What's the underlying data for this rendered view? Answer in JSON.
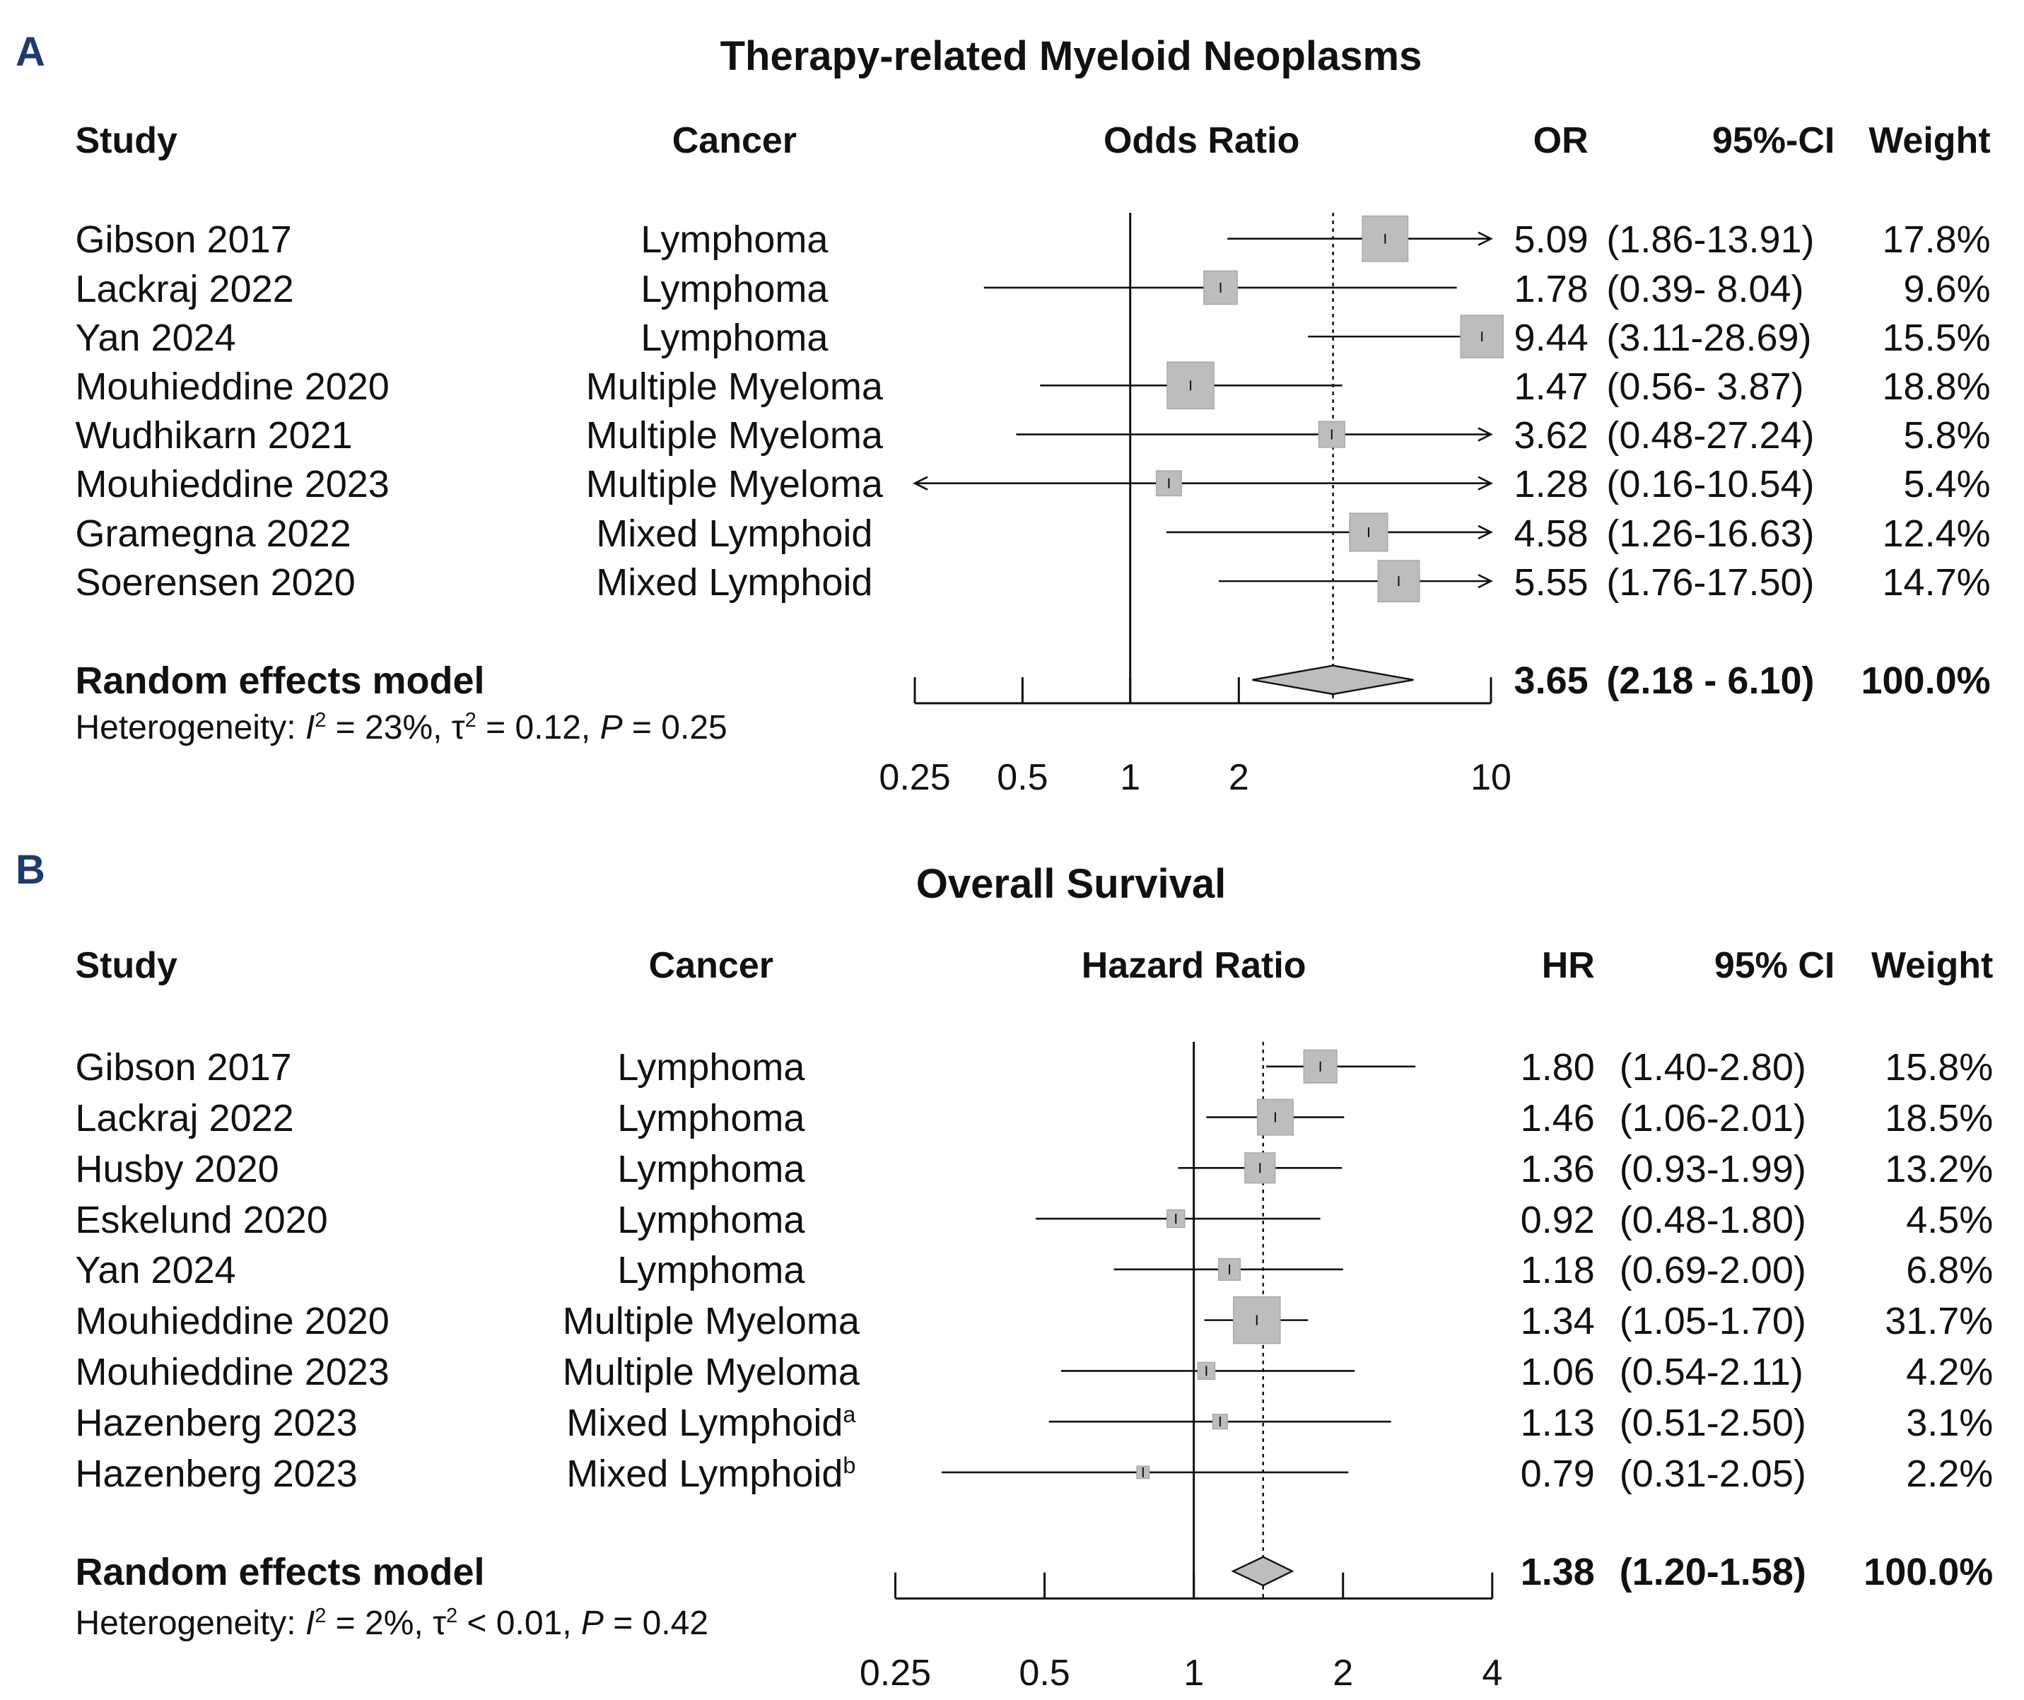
{
  "chart_data": [
    {
      "panel": "A",
      "type": "forest",
      "title": "Therapy-related Myeloid Neoplasms",
      "headers": {
        "study": "Study",
        "cancer": "Cancer",
        "plot": "Odds Ratio",
        "est": "OR",
        "ci": "95%-CI",
        "weight": "Weight"
      },
      "axis_scale": "log",
      "xlim": [
        0.25,
        10
      ],
      "ticks": [
        "0.25",
        "0.5",
        "1",
        "2",
        "10"
      ],
      "pooled_line": 3.65,
      "studies": [
        {
          "study": "Gibson 2017",
          "cancer": "Lymphoma",
          "est": 5.09,
          "lo": 1.86,
          "hi": 13.91,
          "est_txt": "5.09",
          "ci_txt": "(1.86-13.91)",
          "weight": 17.8,
          "weight_txt": "17.8%"
        },
        {
          "study": "Lackraj 2022",
          "cancer": "Lymphoma",
          "est": 1.78,
          "lo": 0.39,
          "hi": 8.04,
          "est_txt": "1.78",
          "ci_txt": "(0.39- 8.04)",
          "weight": 9.6,
          "weight_txt": "9.6%"
        },
        {
          "study": "Yan 2024",
          "cancer": "Lymphoma",
          "est": 9.44,
          "lo": 3.11,
          "hi": 28.69,
          "est_txt": "9.44",
          "ci_txt": "(3.11-28.69)",
          "weight": 15.5,
          "weight_txt": "15.5%"
        },
        {
          "study": "Mouhieddine 2020",
          "cancer": "Multiple Myeloma",
          "est": 1.47,
          "lo": 0.56,
          "hi": 3.87,
          "est_txt": "1.47",
          "ci_txt": "(0.56- 3.87)",
          "weight": 18.8,
          "weight_txt": "18.8%"
        },
        {
          "study": "Wudhikarn 2021",
          "cancer": "Multiple Myeloma",
          "est": 3.62,
          "lo": 0.48,
          "hi": 27.24,
          "est_txt": "3.62",
          "ci_txt": "(0.48-27.24)",
          "weight": 5.8,
          "weight_txt": "5.8%"
        },
        {
          "study": "Mouhieddine 2023",
          "cancer": "Multiple Myeloma",
          "est": 1.28,
          "lo": 0.16,
          "hi": 10.54,
          "est_txt": "1.28",
          "ci_txt": "(0.16-10.54)",
          "weight": 5.4,
          "weight_txt": "5.4%"
        },
        {
          "study": "Gramegna 2022",
          "cancer": "Mixed Lymphoid",
          "est": 4.58,
          "lo": 1.26,
          "hi": 16.63,
          "est_txt": "4.58",
          "ci_txt": "(1.26-16.63)",
          "weight": 12.4,
          "weight_txt": "12.4%"
        },
        {
          "study": "Soerensen 2020",
          "cancer": "Mixed Lymphoid",
          "est": 5.55,
          "lo": 1.76,
          "hi": 17.5,
          "est_txt": "5.55",
          "ci_txt": "(1.76-17.50)",
          "weight": 14.7,
          "weight_txt": "14.7%"
        }
      ],
      "model": {
        "label": "Random effects model",
        "est": 3.65,
        "lo": 2.18,
        "hi": 6.1,
        "est_txt": "3.65",
        "ci_txt": "(2.18 - 6.10)",
        "weight_txt": "100.0%"
      },
      "heterogeneity": {
        "prefix": "Heterogeneity: ",
        "i_sym": "I",
        "i_sup": "2",
        "i_val": " = 23%, τ",
        "t_sup": "2",
        "t_val": " = 0.12, ",
        "p_sym": "P",
        "p_val": " = 0.25"
      }
    },
    {
      "panel": "B",
      "type": "forest",
      "title": "Overall Survival",
      "headers": {
        "study": "Study",
        "cancer": "Cancer",
        "plot": "Hazard Ratio",
        "est": "HR",
        "ci": "95% CI",
        "weight": "Weight"
      },
      "axis_scale": "log",
      "xlim": [
        0.25,
        4
      ],
      "ticks": [
        "0.25",
        "0.5",
        "1",
        "2",
        "4"
      ],
      "pooled_line": 1.38,
      "studies": [
        {
          "study": "Gibson 2017",
          "cancer": "Lymphoma",
          "cancer_sup": "",
          "est": 1.8,
          "lo": 1.4,
          "hi": 2.8,
          "est_txt": "1.80",
          "ci_txt": "(1.40-2.80)",
          "weight": 15.8,
          "weight_txt": "15.8%"
        },
        {
          "study": "Lackraj 2022",
          "cancer": "Lymphoma",
          "cancer_sup": "",
          "est": 1.46,
          "lo": 1.06,
          "hi": 2.01,
          "est_txt": "1.46",
          "ci_txt": "(1.06-2.01)",
          "weight": 18.5,
          "weight_txt": "18.5%"
        },
        {
          "study": "Husby 2020",
          "cancer": "Lymphoma",
          "cancer_sup": "",
          "est": 1.36,
          "lo": 0.93,
          "hi": 1.99,
          "est_txt": "1.36",
          "ci_txt": "(0.93-1.99)",
          "weight": 13.2,
          "weight_txt": "13.2%"
        },
        {
          "study": "Eskelund 2020",
          "cancer": "Lymphoma",
          "cancer_sup": "",
          "est": 0.92,
          "lo": 0.48,
          "hi": 1.8,
          "est_txt": "0.92",
          "ci_txt": "(0.48-1.80)",
          "weight": 4.5,
          "weight_txt": "4.5%"
        },
        {
          "study": "Yan 2024",
          "cancer": "Lymphoma",
          "cancer_sup": "",
          "est": 1.18,
          "lo": 0.69,
          "hi": 2.0,
          "est_txt": "1.18",
          "ci_txt": "(0.69-2.00)",
          "weight": 6.8,
          "weight_txt": "6.8%"
        },
        {
          "study": "Mouhieddine 2020",
          "cancer": "Multiple Myeloma",
          "cancer_sup": "",
          "est": 1.34,
          "lo": 1.05,
          "hi": 1.7,
          "est_txt": "1.34",
          "ci_txt": "(1.05-1.70)",
          "weight": 31.7,
          "weight_txt": "31.7%"
        },
        {
          "study": "Mouhieddine 2023",
          "cancer": "Multiple Myeloma",
          "cancer_sup": "",
          "est": 1.06,
          "lo": 0.54,
          "hi": 2.11,
          "est_txt": "1.06",
          "ci_txt": "(0.54-2.11)",
          "weight": 4.2,
          "weight_txt": "4.2%"
        },
        {
          "study": "Hazenberg 2023",
          "cancer": "Mixed Lymphoid",
          "cancer_sup": "a",
          "est": 1.13,
          "lo": 0.51,
          "hi": 2.5,
          "est_txt": "1.13",
          "ci_txt": "(0.51-2.50)",
          "weight": 3.1,
          "weight_txt": "3.1%"
        },
        {
          "study": "Hazenberg 2023",
          "cancer": "Mixed Lymphoid",
          "cancer_sup": "b",
          "est": 0.79,
          "lo": 0.31,
          "hi": 2.05,
          "est_txt": "0.79",
          "ci_txt": "(0.31-2.05)",
          "weight": 2.2,
          "weight_txt": "2.2%"
        }
      ],
      "model": {
        "label": "Random effects model",
        "est": 1.38,
        "lo": 1.2,
        "hi": 1.58,
        "est_txt": "1.38",
        "ci_txt": "(1.20-1.58)",
        "weight_txt": "100.0%"
      },
      "heterogeneity": {
        "prefix": "Heterogeneity: ",
        "i_sym": "I",
        "i_sup": "2",
        "i_val": " = 2%, τ",
        "t_sup": "2",
        "t_val": " < 0.01, ",
        "p_sym": "P",
        "p_val": " = 0.42"
      }
    }
  ]
}
